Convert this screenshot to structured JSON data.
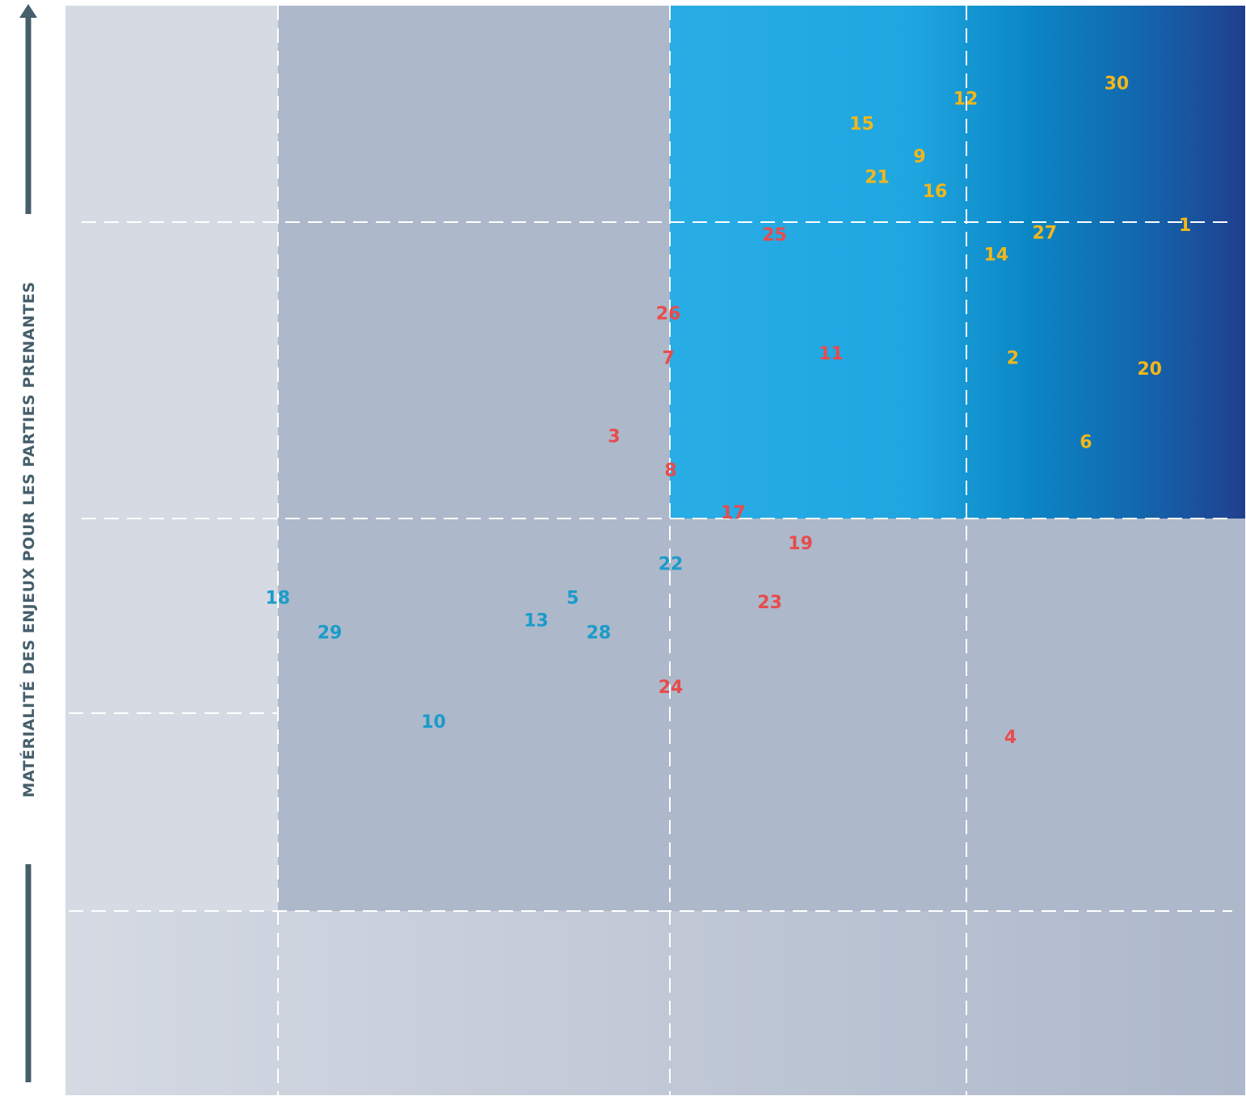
{
  "chart_data": {
    "type": "scatter",
    "title": "",
    "xlabel": "",
    "ylabel": "MATÉRIALITÉ DES ENJEUX POUR LES PARTIES PRENANTES",
    "xlim": [
      0,
      100
    ],
    "ylim": [
      0,
      100
    ],
    "grid": true,
    "colors": {
      "red": "#e84c4c",
      "blue": "#1a9bc9",
      "yellow": "#f2b71a",
      "axis": "#455f6b"
    },
    "points": [
      {
        "label": "1",
        "x": 94.9,
        "y": 79.8,
        "color": "yellow"
      },
      {
        "label": "2",
        "x": 80.3,
        "y": 67.6,
        "color": "yellow"
      },
      {
        "label": "3",
        "x": 46.5,
        "y": 60.4,
        "color": "red"
      },
      {
        "label": "4",
        "x": 80.1,
        "y": 32.8,
        "color": "red"
      },
      {
        "label": "5",
        "x": 43.0,
        "y": 45.6,
        "color": "blue"
      },
      {
        "label": "6",
        "x": 86.5,
        "y": 59.9,
        "color": "yellow"
      },
      {
        "label": "7",
        "x": 51.1,
        "y": 67.6,
        "color": "red"
      },
      {
        "label": "8",
        "x": 51.3,
        "y": 57.3,
        "color": "red"
      },
      {
        "label": "9",
        "x": 72.4,
        "y": 86.1,
        "color": "yellow"
      },
      {
        "label": "10",
        "x": 31.2,
        "y": 34.2,
        "color": "blue"
      },
      {
        "label": "11",
        "x": 64.9,
        "y": 68.0,
        "color": "red"
      },
      {
        "label": "12",
        "x": 76.3,
        "y": 91.4,
        "color": "yellow"
      },
      {
        "label": "13",
        "x": 39.9,
        "y": 43.5,
        "color": "blue"
      },
      {
        "label": "14",
        "x": 78.9,
        "y": 77.1,
        "color": "yellow"
      },
      {
        "label": "15",
        "x": 67.5,
        "y": 89.1,
        "color": "yellow"
      },
      {
        "label": "16",
        "x": 73.7,
        "y": 82.9,
        "color": "yellow"
      },
      {
        "label": "17",
        "x": 56.6,
        "y": 53.4,
        "color": "red"
      },
      {
        "label": "18",
        "x": 18.0,
        "y": 45.6,
        "color": "blue"
      },
      {
        "label": "19",
        "x": 62.3,
        "y": 50.6,
        "color": "red"
      },
      {
        "label": "20",
        "x": 91.9,
        "y": 66.6,
        "color": "yellow"
      },
      {
        "label": "21",
        "x": 68.8,
        "y": 84.2,
        "color": "yellow"
      },
      {
        "label": "22",
        "x": 51.3,
        "y": 48.7,
        "color": "blue"
      },
      {
        "label": "23",
        "x": 59.7,
        "y": 45.2,
        "color": "red"
      },
      {
        "label": "24",
        "x": 51.3,
        "y": 37.4,
        "color": "red"
      },
      {
        "label": "25",
        "x": 60.1,
        "y": 78.9,
        "color": "red"
      },
      {
        "label": "26",
        "x": 51.1,
        "y": 71.7,
        "color": "red"
      },
      {
        "label": "27",
        "x": 83.0,
        "y": 79.1,
        "color": "yellow"
      },
      {
        "label": "28",
        "x": 45.2,
        "y": 42.4,
        "color": "blue"
      },
      {
        "label": "29",
        "x": 22.4,
        "y": 42.4,
        "color": "blue"
      },
      {
        "label": "30",
        "x": 89.1,
        "y": 92.8,
        "color": "yellow"
      }
    ]
  }
}
